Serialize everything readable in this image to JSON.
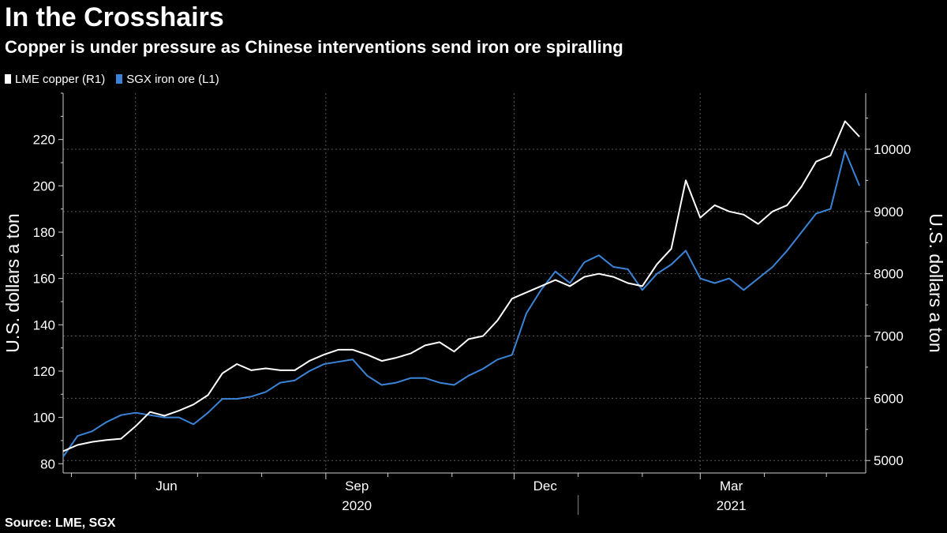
{
  "title": "In the Crosshairs",
  "subtitle": "Copper is under pressure as Chinese interventions send iron ore spiralling",
  "source": "Source: LME, SGX",
  "chart_data": {
    "type": "line",
    "x_axis": {
      "type": "date",
      "range": [
        "2020-04-27",
        "2021-05-20"
      ],
      "month_labels": [
        {
          "label": "Jun",
          "date": "2020-06-01"
        },
        {
          "label": "Sep",
          "date": "2020-09-01"
        },
        {
          "label": "Dec",
          "date": "2020-12-01"
        },
        {
          "label": "Mar",
          "date": "2021-03-01"
        }
      ],
      "year_labels": [
        {
          "label": "2020",
          "date": "2020-09-01"
        },
        {
          "label": "2021",
          "date": "2021-03-01"
        }
      ],
      "year_divider": "2021-01-01"
    },
    "left_axis": {
      "label": "U.S. dollars a ton",
      "ticks": [
        80,
        100,
        120,
        140,
        160,
        180,
        200,
        220
      ],
      "range": [
        76,
        240
      ]
    },
    "right_axis": {
      "label": "U.S. dollars a ton",
      "ticks": [
        5000,
        6000,
        7000,
        8000,
        9000,
        10000
      ],
      "tick_labels": [
        "5000",
        "6000",
        "7000",
        "8000",
        "9000",
        "10000"
      ],
      "range": [
        4800,
        10900
      ]
    },
    "grid": true,
    "legend_position": "top-left",
    "series": [
      {
        "name": "LME copper (R1)",
        "axis": "right",
        "color": "#ffffff",
        "points": [
          [
            "2020-04-27",
            5150
          ],
          [
            "2020-05-04",
            5250
          ],
          [
            "2020-05-11",
            5300
          ],
          [
            "2020-05-18",
            5330
          ],
          [
            "2020-05-25",
            5350
          ],
          [
            "2020-06-01",
            5550
          ],
          [
            "2020-06-08",
            5780
          ],
          [
            "2020-06-15",
            5720
          ],
          [
            "2020-06-22",
            5800
          ],
          [
            "2020-06-29",
            5900
          ],
          [
            "2020-07-06",
            6050
          ],
          [
            "2020-07-13",
            6400
          ],
          [
            "2020-07-20",
            6550
          ],
          [
            "2020-07-27",
            6450
          ],
          [
            "2020-08-03",
            6480
          ],
          [
            "2020-08-10",
            6450
          ],
          [
            "2020-08-17",
            6450
          ],
          [
            "2020-08-24",
            6600
          ],
          [
            "2020-08-31",
            6700
          ],
          [
            "2020-09-07",
            6780
          ],
          [
            "2020-09-14",
            6780
          ],
          [
            "2020-09-21",
            6700
          ],
          [
            "2020-09-28",
            6600
          ],
          [
            "2020-10-05",
            6650
          ],
          [
            "2020-10-12",
            6720
          ],
          [
            "2020-10-19",
            6850
          ],
          [
            "2020-10-26",
            6900
          ],
          [
            "2020-11-02",
            6750
          ],
          [
            "2020-11-09",
            6950
          ],
          [
            "2020-11-16",
            7000
          ],
          [
            "2020-11-23",
            7250
          ],
          [
            "2020-11-30",
            7600
          ],
          [
            "2020-12-07",
            7700
          ],
          [
            "2020-12-14",
            7800
          ],
          [
            "2020-12-21",
            7900
          ],
          [
            "2020-12-28",
            7800
          ],
          [
            "2021-01-04",
            7950
          ],
          [
            "2021-01-11",
            8000
          ],
          [
            "2021-01-18",
            7950
          ],
          [
            "2021-01-25",
            7850
          ],
          [
            "2021-02-01",
            7800
          ],
          [
            "2021-02-08",
            8150
          ],
          [
            "2021-02-15",
            8400
          ],
          [
            "2021-02-22",
            9500
          ],
          [
            "2021-03-01",
            8900
          ],
          [
            "2021-03-08",
            9100
          ],
          [
            "2021-03-15",
            9000
          ],
          [
            "2021-03-22",
            8950
          ],
          [
            "2021-03-29",
            8800
          ],
          [
            "2021-04-05",
            9000
          ],
          [
            "2021-04-12",
            9100
          ],
          [
            "2021-04-19",
            9400
          ],
          [
            "2021-04-26",
            9800
          ],
          [
            "2021-05-03",
            9900
          ],
          [
            "2021-05-10",
            10450
          ],
          [
            "2021-05-17",
            10200
          ]
        ]
      },
      {
        "name": "SGX iron ore (L1)",
        "axis": "left",
        "color": "#3a84d8",
        "points": [
          [
            "2020-04-27",
            83
          ],
          [
            "2020-05-04",
            92
          ],
          [
            "2020-05-11",
            94
          ],
          [
            "2020-05-18",
            98
          ],
          [
            "2020-05-25",
            101
          ],
          [
            "2020-06-01",
            102
          ],
          [
            "2020-06-08",
            101
          ],
          [
            "2020-06-15",
            100
          ],
          [
            "2020-06-22",
            100
          ],
          [
            "2020-06-29",
            97
          ],
          [
            "2020-07-06",
            102
          ],
          [
            "2020-07-13",
            108
          ],
          [
            "2020-07-20",
            108
          ],
          [
            "2020-07-27",
            109
          ],
          [
            "2020-08-03",
            111
          ],
          [
            "2020-08-10",
            115
          ],
          [
            "2020-08-17",
            116
          ],
          [
            "2020-08-24",
            120
          ],
          [
            "2020-08-31",
            123
          ],
          [
            "2020-09-07",
            124
          ],
          [
            "2020-09-14",
            125
          ],
          [
            "2020-09-21",
            118
          ],
          [
            "2020-09-28",
            114
          ],
          [
            "2020-10-05",
            115
          ],
          [
            "2020-10-12",
            117
          ],
          [
            "2020-10-19",
            117
          ],
          [
            "2020-10-26",
            115
          ],
          [
            "2020-11-02",
            114
          ],
          [
            "2020-11-09",
            118
          ],
          [
            "2020-11-16",
            121
          ],
          [
            "2020-11-23",
            125
          ],
          [
            "2020-11-30",
            127
          ],
          [
            "2020-12-07",
            145
          ],
          [
            "2020-12-14",
            155
          ],
          [
            "2020-12-21",
            163
          ],
          [
            "2020-12-28",
            158
          ],
          [
            "2021-01-04",
            167
          ],
          [
            "2021-01-11",
            170
          ],
          [
            "2021-01-18",
            165
          ],
          [
            "2021-01-25",
            164
          ],
          [
            "2021-02-01",
            155
          ],
          [
            "2021-02-08",
            162
          ],
          [
            "2021-02-15",
            166
          ],
          [
            "2021-02-22",
            172
          ],
          [
            "2021-03-01",
            160
          ],
          [
            "2021-03-08",
            158
          ],
          [
            "2021-03-15",
            160
          ],
          [
            "2021-03-22",
            155
          ],
          [
            "2021-03-29",
            160
          ],
          [
            "2021-04-05",
            165
          ],
          [
            "2021-04-12",
            172
          ],
          [
            "2021-04-19",
            180
          ],
          [
            "2021-04-26",
            188
          ],
          [
            "2021-05-03",
            190
          ],
          [
            "2021-05-10",
            215
          ],
          [
            "2021-05-17",
            200
          ]
        ]
      }
    ]
  }
}
